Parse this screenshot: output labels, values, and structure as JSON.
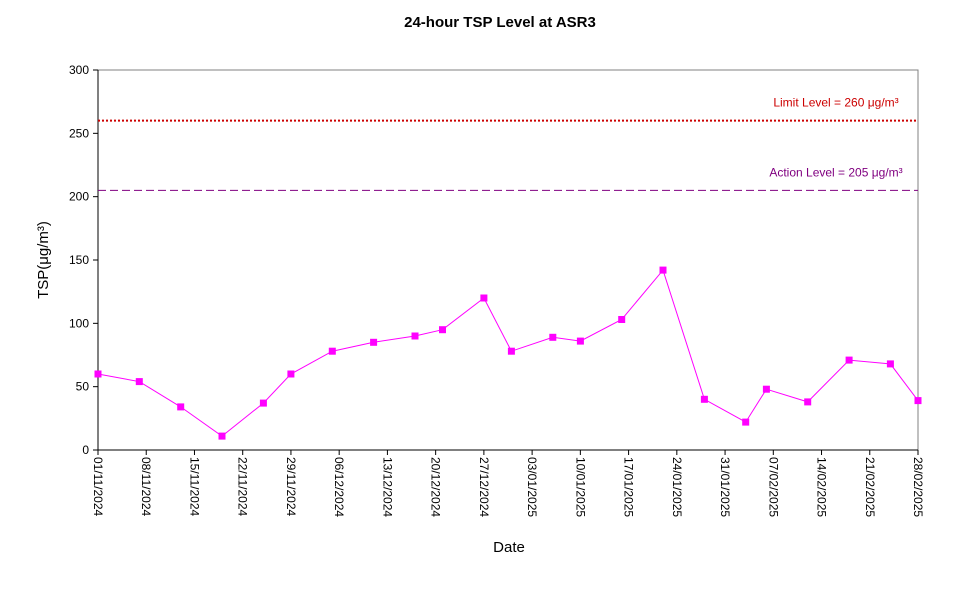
{
  "chart_data": {
    "type": "line",
    "title": "24-hour TSP Level at ASR3",
    "xlabel": "Date",
    "ylabel": "TSP(μg/m³)",
    "ylim": [
      0,
      300
    ],
    "yticks": [
      0,
      50,
      100,
      150,
      200,
      250,
      300
    ],
    "xlim": [
      "2024-11-01",
      "2025-02-28"
    ],
    "xtick_labels": [
      "01/11/2024",
      "08/11/2024",
      "15/11/2024",
      "22/11/2024",
      "29/11/2024",
      "06/12/2024",
      "13/12/2024",
      "20/12/2024",
      "27/12/2024",
      "03/01/2025",
      "10/01/2025",
      "17/01/2025",
      "24/01/2025",
      "31/01/2025",
      "07/02/2025",
      "14/02/2025",
      "21/02/2025",
      "28/02/2025"
    ],
    "grid": false,
    "series": [
      {
        "color": "#ff00ff",
        "marker": "square",
        "points": [
          {
            "x": "2024-11-01",
            "y": 60
          },
          {
            "x": "2024-11-07",
            "y": 54
          },
          {
            "x": "2024-11-13",
            "y": 34
          },
          {
            "x": "2024-11-19",
            "y": 11
          },
          {
            "x": "2024-11-25",
            "y": 37
          },
          {
            "x": "2024-11-29",
            "y": 60
          },
          {
            "x": "2024-12-05",
            "y": 78
          },
          {
            "x": "2024-12-11",
            "y": 85
          },
          {
            "x": "2024-12-17",
            "y": 90
          },
          {
            "x": "2024-12-21",
            "y": 95
          },
          {
            "x": "2024-12-27",
            "y": 120
          },
          {
            "x": "2024-12-31",
            "y": 78
          },
          {
            "x": "2025-01-06",
            "y": 89
          },
          {
            "x": "2025-01-10",
            "y": 86
          },
          {
            "x": "2025-01-16",
            "y": 103
          },
          {
            "x": "2025-01-22",
            "y": 142
          },
          {
            "x": "2025-01-28",
            "y": 40
          },
          {
            "x": "2025-02-03",
            "y": 22
          },
          {
            "x": "2025-02-06",
            "y": 48
          },
          {
            "x": "2025-02-12",
            "y": 38
          },
          {
            "x": "2025-02-18",
            "y": 71
          },
          {
            "x": "2025-02-24",
            "y": 68
          },
          {
            "x": "2025-02-28",
            "y": 39
          }
        ]
      }
    ],
    "reference_lines": [
      {
        "label": "Limit Level  = 260 μg/m³",
        "y": 260,
        "color": "#cc0000",
        "style": "dotted"
      },
      {
        "label": "Action Level  = 205 μg/m³",
        "y": 205,
        "color": "#800080",
        "style": "dashed"
      }
    ]
  }
}
